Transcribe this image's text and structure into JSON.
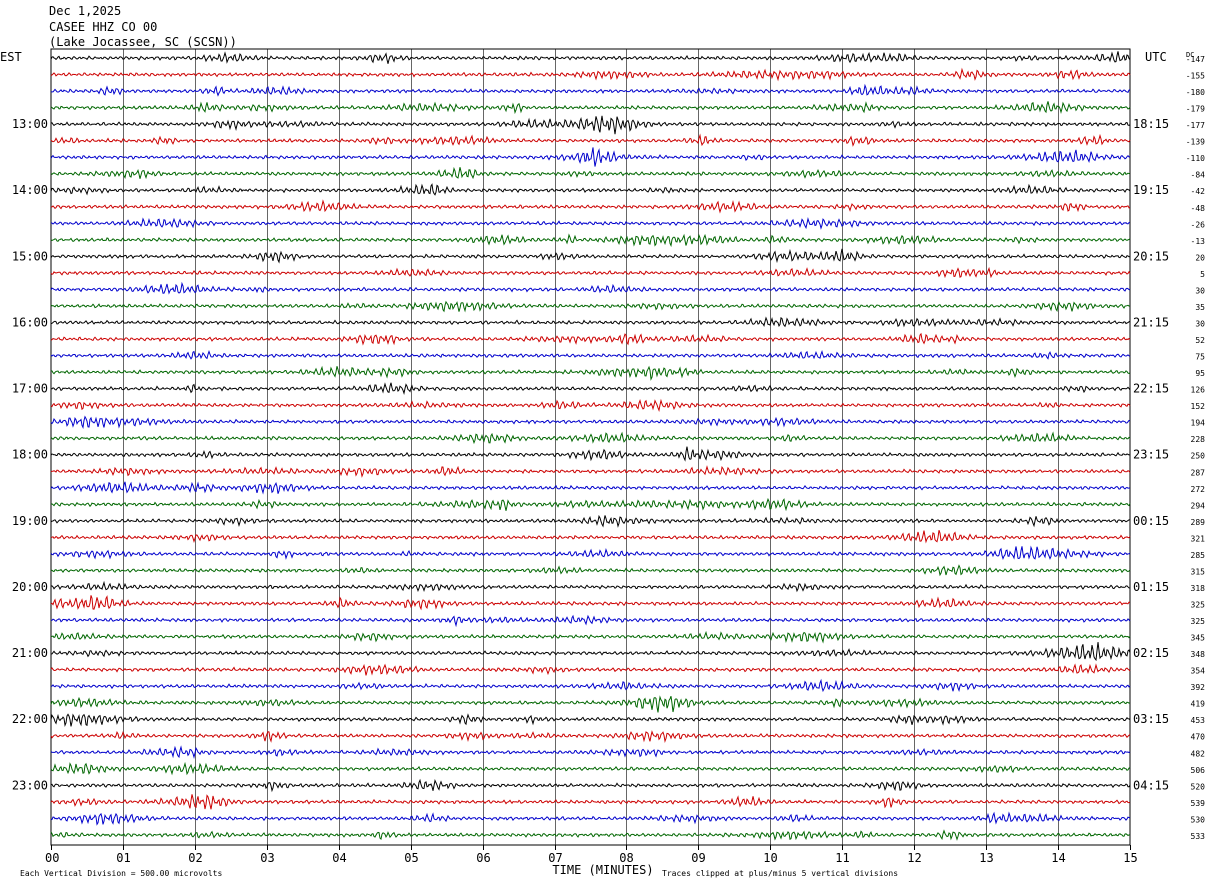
{
  "header": {
    "date": "Dec 1,2025",
    "station": "CASEE HHZ CO 00",
    "location": "(Lake Jocassee, SC (SCSN))"
  },
  "chart_data": {
    "type": "line",
    "title": "",
    "left_timezone": "EST",
    "right_timezone": "UTC",
    "dc_label": "DC",
    "xlabel": "TIME (MINUTES)",
    "x_ticks": [
      "00",
      "01",
      "02",
      "03",
      "04",
      "05",
      "06",
      "07",
      "08",
      "09",
      "10",
      "11",
      "12",
      "13",
      "14",
      "15"
    ],
    "xlim": [
      0,
      15
    ],
    "left_hour_labels": [
      "13:00",
      "14:00",
      "15:00",
      "16:00",
      "17:00",
      "18:00",
      "19:00",
      "20:00",
      "21:00",
      "22:00",
      "23:00"
    ],
    "right_hour_labels": [
      "18:15",
      "19:15",
      "20:15",
      "21:15",
      "22:15",
      "23:15",
      "00:15",
      "01:15",
      "02:15",
      "03:15",
      "04:15"
    ],
    "trace_colors": [
      "#000000",
      "#cc0000",
      "#0000cc",
      "#006600"
    ],
    "dc_offsets": [
      -147,
      -155,
      -180,
      -179,
      -177,
      -139,
      -110,
      -84,
      -42,
      -48,
      -26,
      -13,
      20,
      5,
      30,
      35,
      30,
      52,
      75,
      95,
      126,
      152,
      194,
      228,
      250,
      287,
      272,
      294,
      289,
      321,
      285,
      315,
      318,
      325,
      325,
      345,
      348,
      354,
      392,
      419,
      453,
      470,
      482,
      506,
      520,
      539,
      530,
      533
    ],
    "footer_left": "Each Vertical Division =  500.00 microvolts",
    "footer_right": "Traces clipped at plus/minus 5 vertical divisions"
  }
}
